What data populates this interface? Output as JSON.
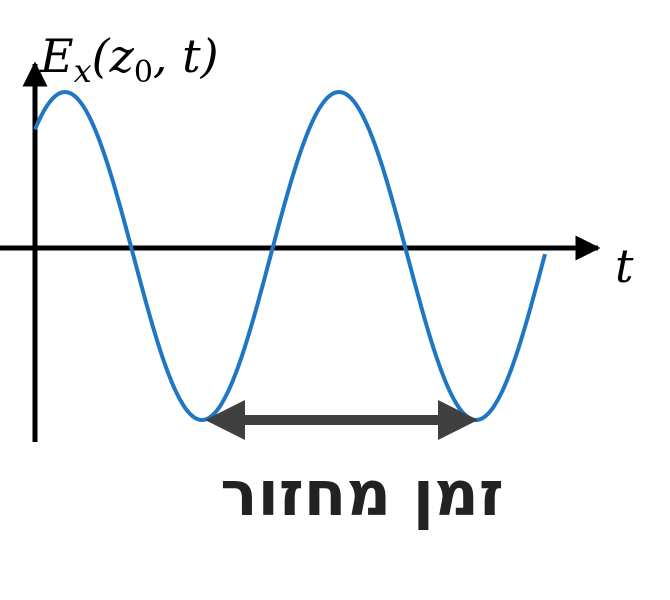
{
  "labels": {
    "y_axis_main": "E",
    "y_axis_sub": "x",
    "y_axis_open": "(z",
    "y_axis_sub2": "0",
    "y_axis_rest": ", t)",
    "x_axis": "t",
    "period": "זמן מחזור"
  },
  "colors": {
    "wave": "#1f77c4",
    "axes": "#000000",
    "period_arrow": "#404040"
  },
  "wave": {
    "cycles_shown": 1.85,
    "phase_note": "starts just before a crest"
  }
}
